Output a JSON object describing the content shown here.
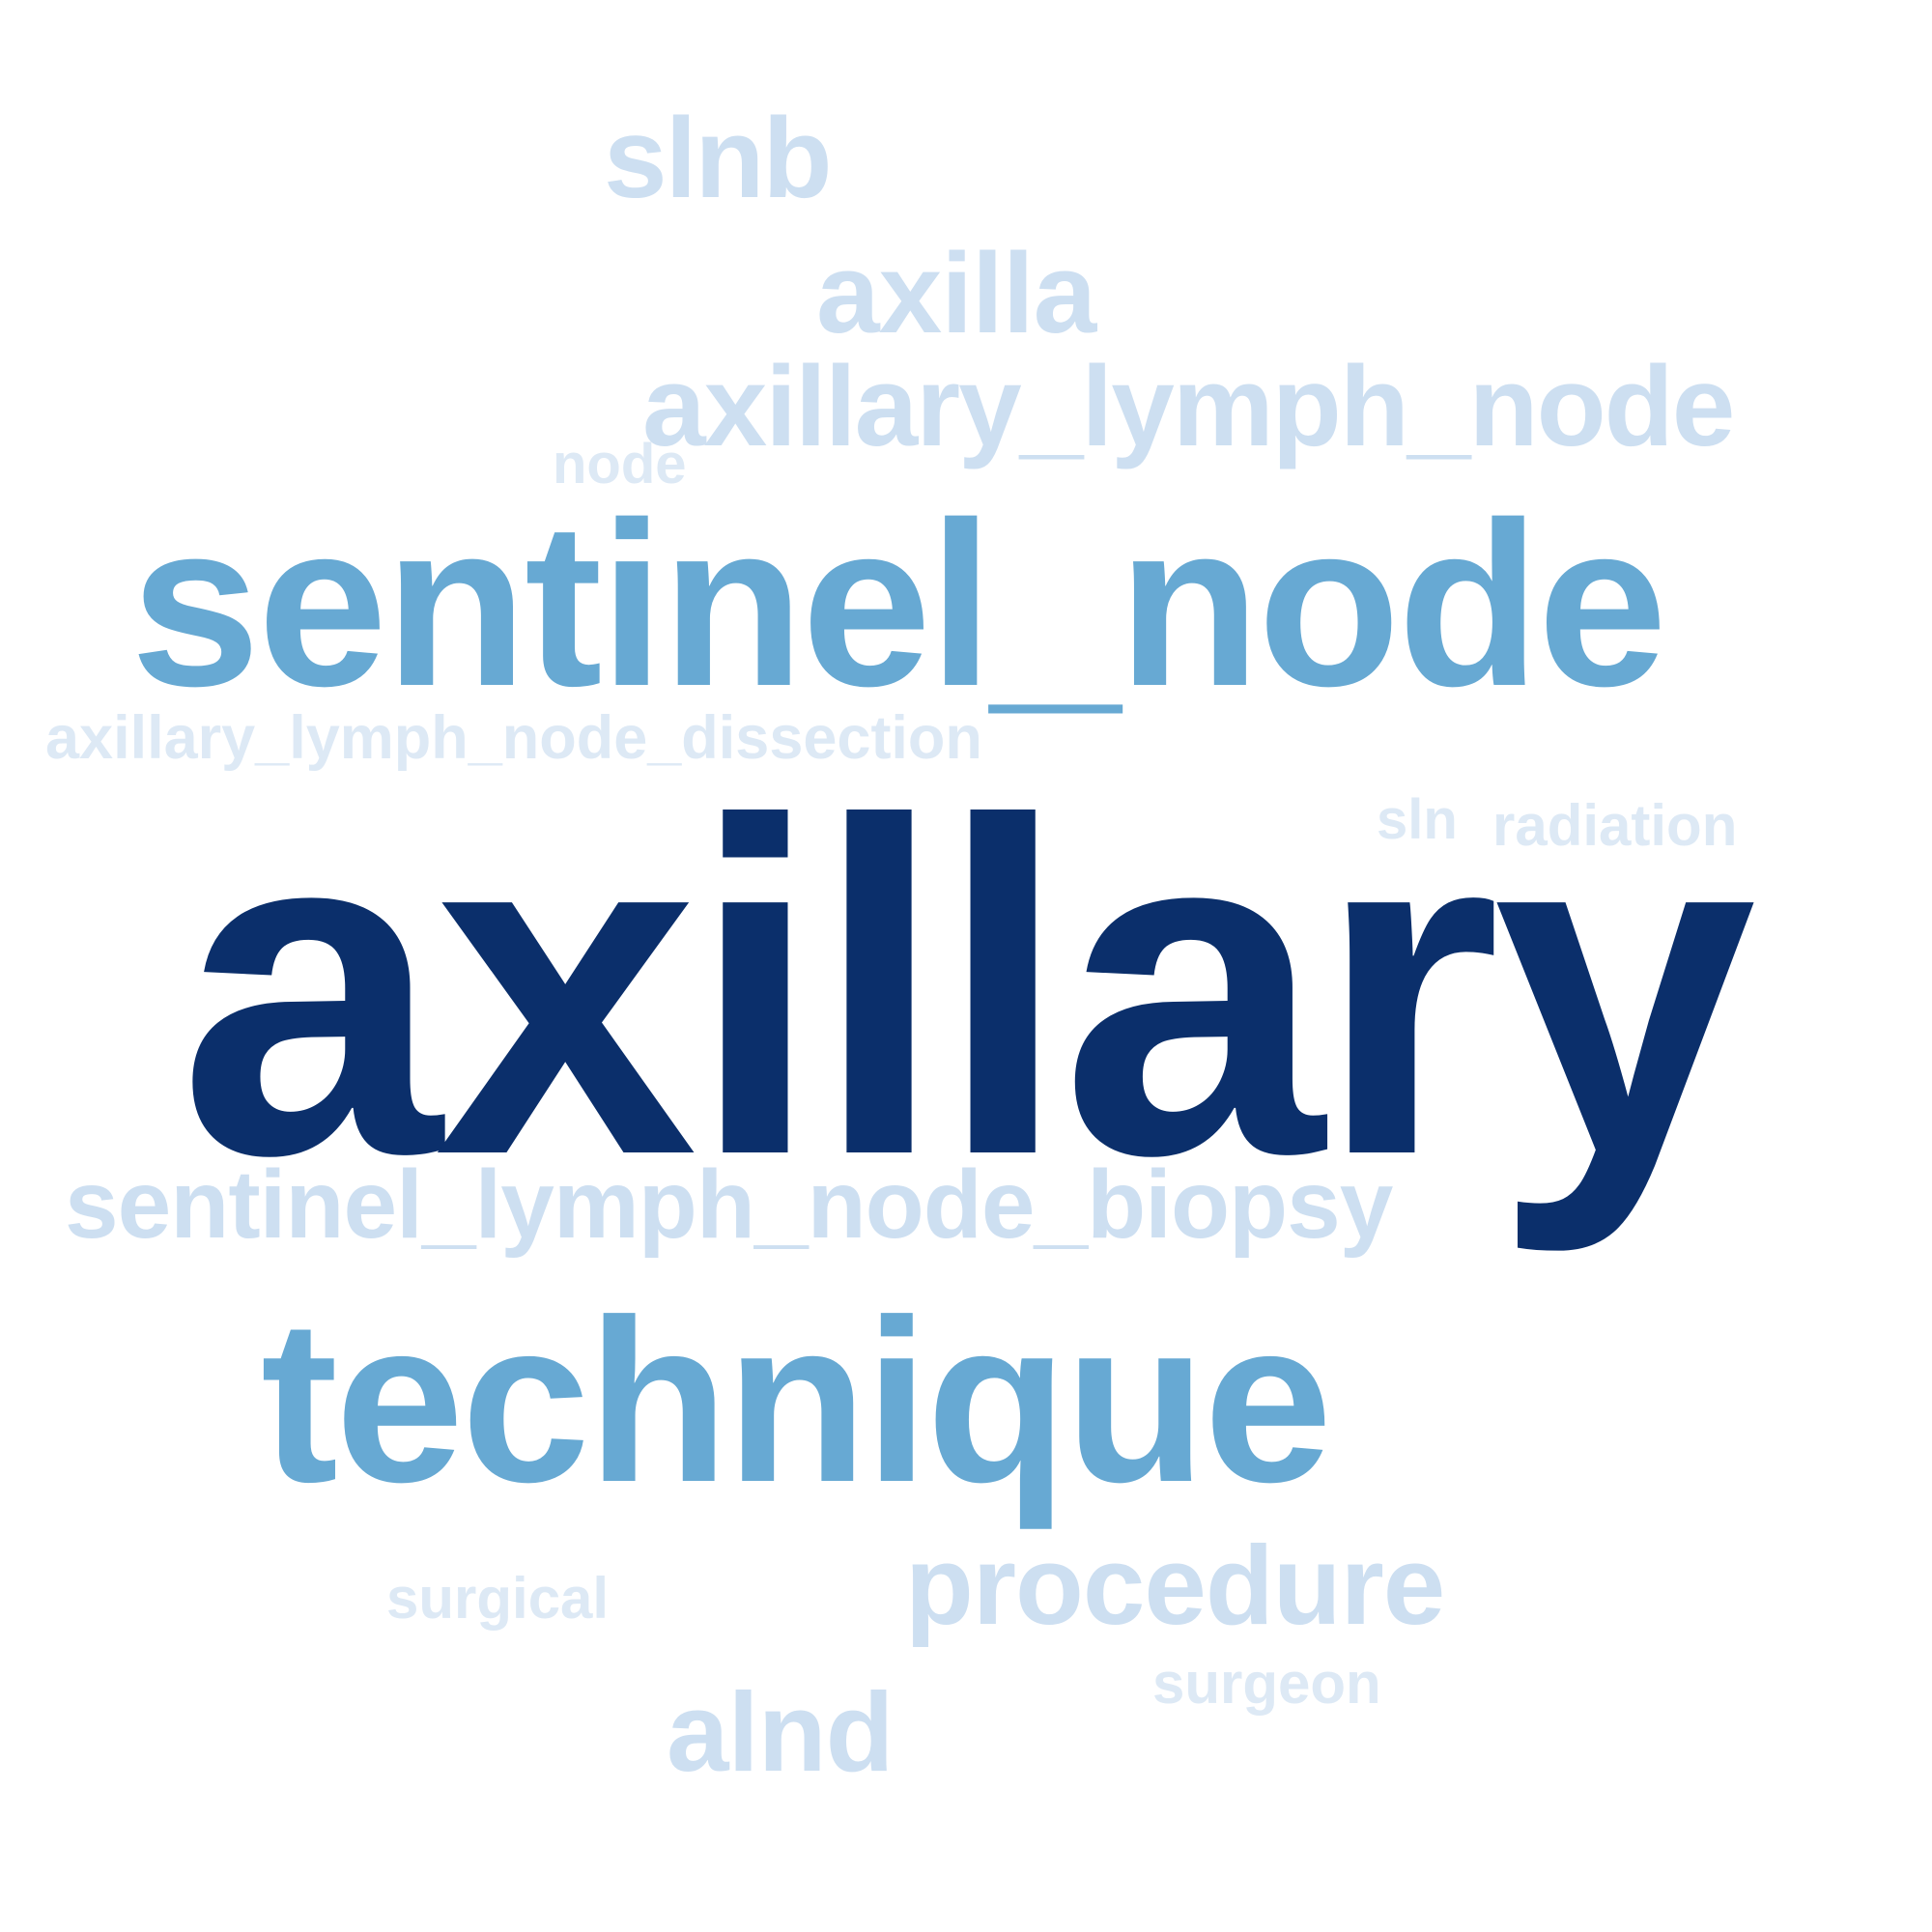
{
  "word_cloud": {
    "palette": {
      "dark": "#0b2f6b",
      "mid": "#67a9d3",
      "light": "#cddff1",
      "faint": "#dde9f5",
      "background": "#ffffff"
    },
    "words": {
      "slnb": "slnb",
      "axilla": "axilla",
      "axillary_lymph_node": "axillary_lymph_node",
      "node": "node",
      "sentinel_node": "sentinel_node",
      "axillary_lymph_node_dissection": "axillary_lymph_node_dissection",
      "sln": "sln",
      "radiation": "radiation",
      "axillary": "axillary",
      "sentinel_lymph_node_biopsy": "sentinel_lymph_node_biopsy",
      "technique": "technique",
      "surgical": "surgical",
      "procedure": "procedure",
      "surgeon": "surgeon",
      "alnd": "alnd"
    }
  }
}
